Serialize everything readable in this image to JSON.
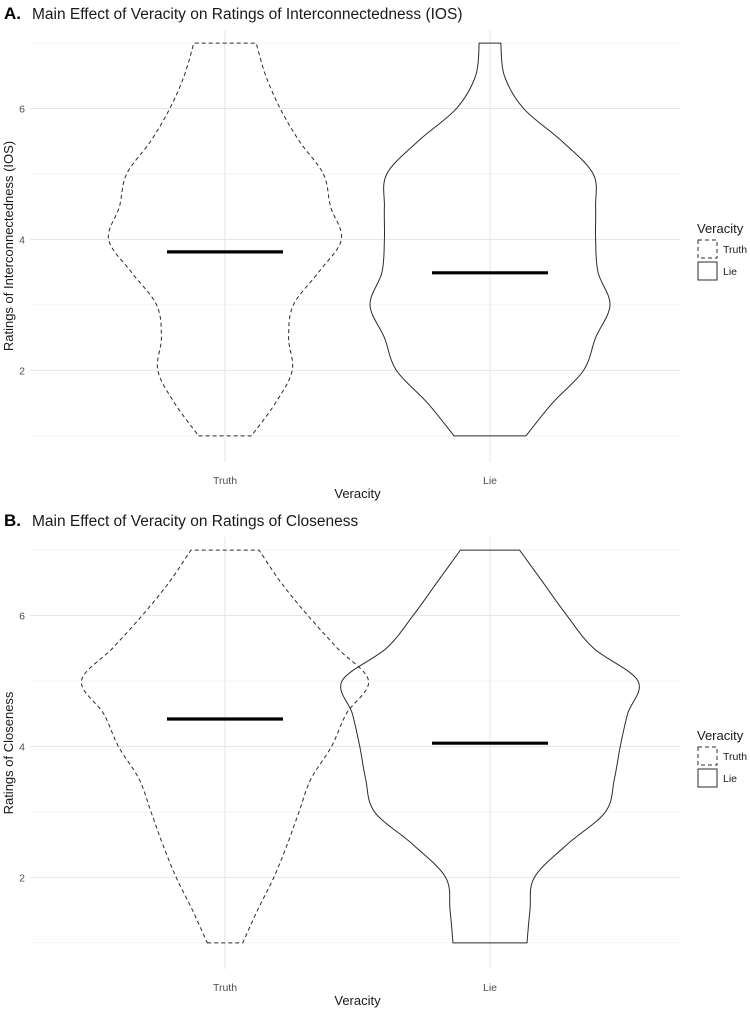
{
  "chart_data": [
    {
      "type": "violin",
      "panel_label": "A.",
      "title": "Main Effect of Veracity on Ratings of Interconnectedness (IOS)",
      "xlabel": "Veracity",
      "ylabel": "Ratings of Interconnectedness (IOS)",
      "categories": [
        "Truth",
        "Lie"
      ],
      "ylim": [
        0.6,
        7.2
      ],
      "yticks": [
        2,
        4,
        6
      ],
      "grid": true,
      "legend": {
        "title": "Veracity",
        "position": "right",
        "entries": [
          "Truth",
          "Lie"
        ]
      },
      "series": [
        {
          "name": "Truth",
          "line_style": "dashed",
          "mean": 3.81,
          "range": [
            1,
            7
          ],
          "density": [
            [
              1.0,
              0.22
            ],
            [
              1.5,
              0.42
            ],
            [
              2.0,
              0.56
            ],
            [
              2.5,
              0.53
            ],
            [
              3.0,
              0.57
            ],
            [
              3.5,
              0.78
            ],
            [
              4.0,
              0.97
            ],
            [
              4.5,
              0.88
            ],
            [
              5.0,
              0.82
            ],
            [
              5.5,
              0.62
            ],
            [
              6.0,
              0.46
            ],
            [
              6.5,
              0.34
            ],
            [
              7.0,
              0.26
            ]
          ]
        },
        {
          "name": "Lie",
          "line_style": "solid",
          "mean": 3.49,
          "range": [
            1,
            7
          ],
          "density": [
            [
              1.0,
              0.3
            ],
            [
              1.5,
              0.52
            ],
            [
              2.0,
              0.78
            ],
            [
              2.5,
              0.88
            ],
            [
              3.0,
              1.0
            ],
            [
              3.5,
              0.9
            ],
            [
              4.0,
              0.88
            ],
            [
              4.5,
              0.88
            ],
            [
              5.0,
              0.86
            ],
            [
              5.5,
              0.6
            ],
            [
              6.0,
              0.28
            ],
            [
              6.5,
              0.12
            ],
            [
              7.0,
              0.09
            ]
          ]
        }
      ]
    },
    {
      "type": "violin",
      "panel_label": "B.",
      "title": "Main Effect of Veracity on Ratings of Closeness",
      "xlabel": "Veracity",
      "ylabel": "Ratings of Closeness",
      "categories": [
        "Truth",
        "Lie"
      ],
      "ylim": [
        0.6,
        7.2
      ],
      "yticks": [
        2,
        4,
        6
      ],
      "grid": true,
      "legend": {
        "title": "Veracity",
        "position": "right",
        "entries": [
          "Truth",
          "Lie"
        ]
      },
      "series": [
        {
          "name": "Truth",
          "line_style": "dashed",
          "mean": 4.42,
          "range": [
            1,
            7
          ],
          "density": [
            [
              1.0,
              0.12
            ],
            [
              1.5,
              0.22
            ],
            [
              2.0,
              0.33
            ],
            [
              2.5,
              0.42
            ],
            [
              3.0,
              0.5
            ],
            [
              3.5,
              0.58
            ],
            [
              4.0,
              0.72
            ],
            [
              4.5,
              0.82
            ],
            [
              5.0,
              0.97
            ],
            [
              5.5,
              0.76
            ],
            [
              6.0,
              0.56
            ],
            [
              6.5,
              0.38
            ],
            [
              7.0,
              0.23
            ]
          ]
        },
        {
          "name": "Lie",
          "line_style": "solid",
          "mean": 4.05,
          "range": [
            1,
            7
          ],
          "density": [
            [
              1.0,
              0.25
            ],
            [
              1.5,
              0.27
            ],
            [
              2.0,
              0.3
            ],
            [
              2.5,
              0.52
            ],
            [
              3.0,
              0.78
            ],
            [
              3.5,
              0.84
            ],
            [
              4.0,
              0.88
            ],
            [
              4.5,
              0.93
            ],
            [
              5.0,
              1.0
            ],
            [
              5.5,
              0.7
            ],
            [
              6.0,
              0.52
            ],
            [
              6.5,
              0.36
            ],
            [
              7.0,
              0.2
            ]
          ]
        }
      ]
    }
  ]
}
